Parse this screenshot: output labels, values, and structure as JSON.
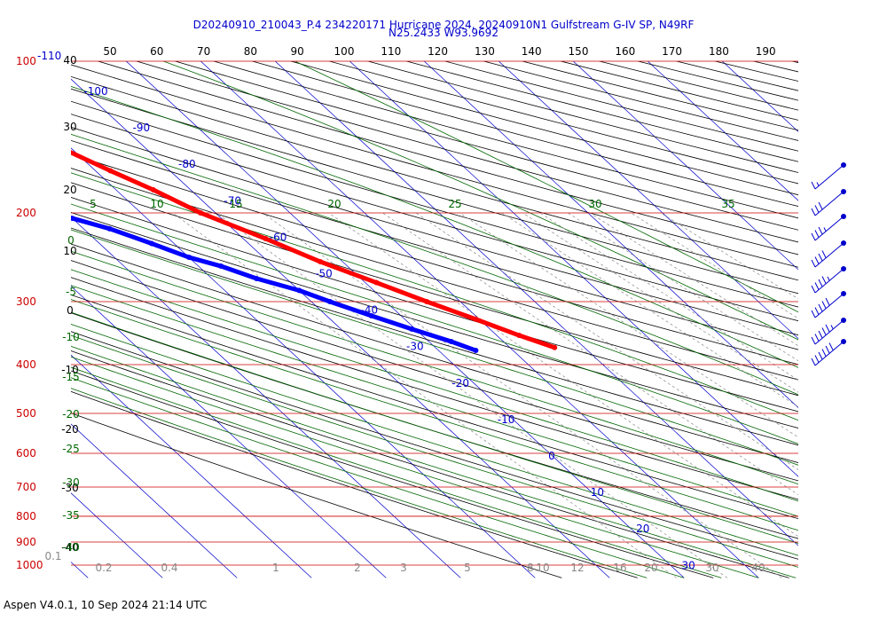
{
  "title_line1": "D20240910_210043_P.4 234220171 Hurricane 2024, 20240910N1 Gulfstream G-IV SP, N49RF",
  "title_line2": "N25.2433 W93.9692",
  "footer": "Aspen V4.0.1, 10 Sep 2024  21:14 UTC",
  "colors": {
    "isobar": "#cc0000",
    "isotherm": "#0000cc",
    "theta": "#000000",
    "theta_e": "#006600",
    "mixing_ratio": "#888888",
    "temperature_trace": "#ff0000",
    "dewpoint_trace": "#0000ff",
    "wind_barb": "#0000cc"
  },
  "chart_data": {
    "type": "skew-t log-p",
    "pressure_levels": [
      {
        "p": 100,
        "label": "100"
      },
      {
        "p": 200,
        "label": "200"
      },
      {
        "p": 300,
        "label": "300"
      },
      {
        "p": 400,
        "label": "400"
      },
      {
        "p": 500,
        "label": "500"
      },
      {
        "p": 600,
        "label": "600"
      },
      {
        "p": 700,
        "label": "700"
      },
      {
        "p": 800,
        "label": "800"
      },
      {
        "p": 900,
        "label": "900"
      },
      {
        "p": 1000,
        "label": "1000"
      }
    ],
    "top_prefix_label": "-110",
    "isotherm_labels": [
      "-100",
      "-90",
      "-80",
      "-70",
      "-60",
      "-50",
      "-40",
      "-30",
      "-20",
      "-10",
      "0",
      "10",
      "20",
      "30"
    ],
    "theta_top_labels": [
      "50",
      "60",
      "70",
      "80",
      "90",
      "100",
      "110",
      "120",
      "130",
      "140",
      "150",
      "160",
      "170",
      "180",
      "190"
    ],
    "left_black_labels": [
      "40",
      "30",
      "20",
      "10",
      "0",
      "-10",
      "-20",
      "-30",
      "-40"
    ],
    "left_green_labels": [
      "0",
      "-5",
      "-10",
      "-15",
      "-20",
      "-25",
      "-30",
      "-35",
      "-40"
    ],
    "theta_e_labels": [
      "5",
      "10",
      "15",
      "20",
      "25",
      "30",
      "35"
    ],
    "mixing_ratio_labels": [
      "0.1",
      "0.2",
      "0.4",
      "1",
      "2",
      "3",
      "5",
      "8",
      "10",
      "12",
      "16",
      "20",
      "30",
      "40"
    ],
    "temperature": [
      {
        "p": 150,
        "t": -61
      },
      {
        "p": 165,
        "t": -58
      },
      {
        "p": 180,
        "t": -55
      },
      {
        "p": 200,
        "t": -52
      },
      {
        "p": 225,
        "t": -47
      },
      {
        "p": 250,
        "t": -43
      },
      {
        "p": 275,
        "t": -38.5
      },
      {
        "p": 300,
        "t": -34.5
      },
      {
        "p": 325,
        "t": -30.5
      },
      {
        "p": 350,
        "t": -27
      },
      {
        "p": 370,
        "t": -24
      }
    ],
    "dewpoint": [
      {
        "p": 199,
        "t": -72
      },
      {
        "p": 205,
        "t": -70
      },
      {
        "p": 215,
        "t": -66.5
      },
      {
        "p": 230,
        "t": -63
      },
      {
        "p": 245,
        "t": -60
      },
      {
        "p": 255,
        "t": -57
      },
      {
        "p": 270,
        "t": -54
      },
      {
        "p": 285,
        "t": -50
      },
      {
        "p": 300,
        "t": -47.5
      },
      {
        "p": 320,
        "t": -44
      },
      {
        "p": 340,
        "t": -40.5
      },
      {
        "p": 360,
        "t": -37
      },
      {
        "p": 375,
        "t": -35
      }
    ],
    "wind_barbs": [
      {
        "p": 165,
        "speed": 15
      },
      {
        "p": 200,
        "speed": 30
      },
      {
        "p": 220,
        "speed": 35
      },
      {
        "p": 245,
        "speed": 40
      },
      {
        "p": 270,
        "speed": 45
      },
      {
        "p": 300,
        "speed": 50
      },
      {
        "p": 330,
        "speed": 55
      },
      {
        "p": 360,
        "speed": 60
      }
    ]
  }
}
